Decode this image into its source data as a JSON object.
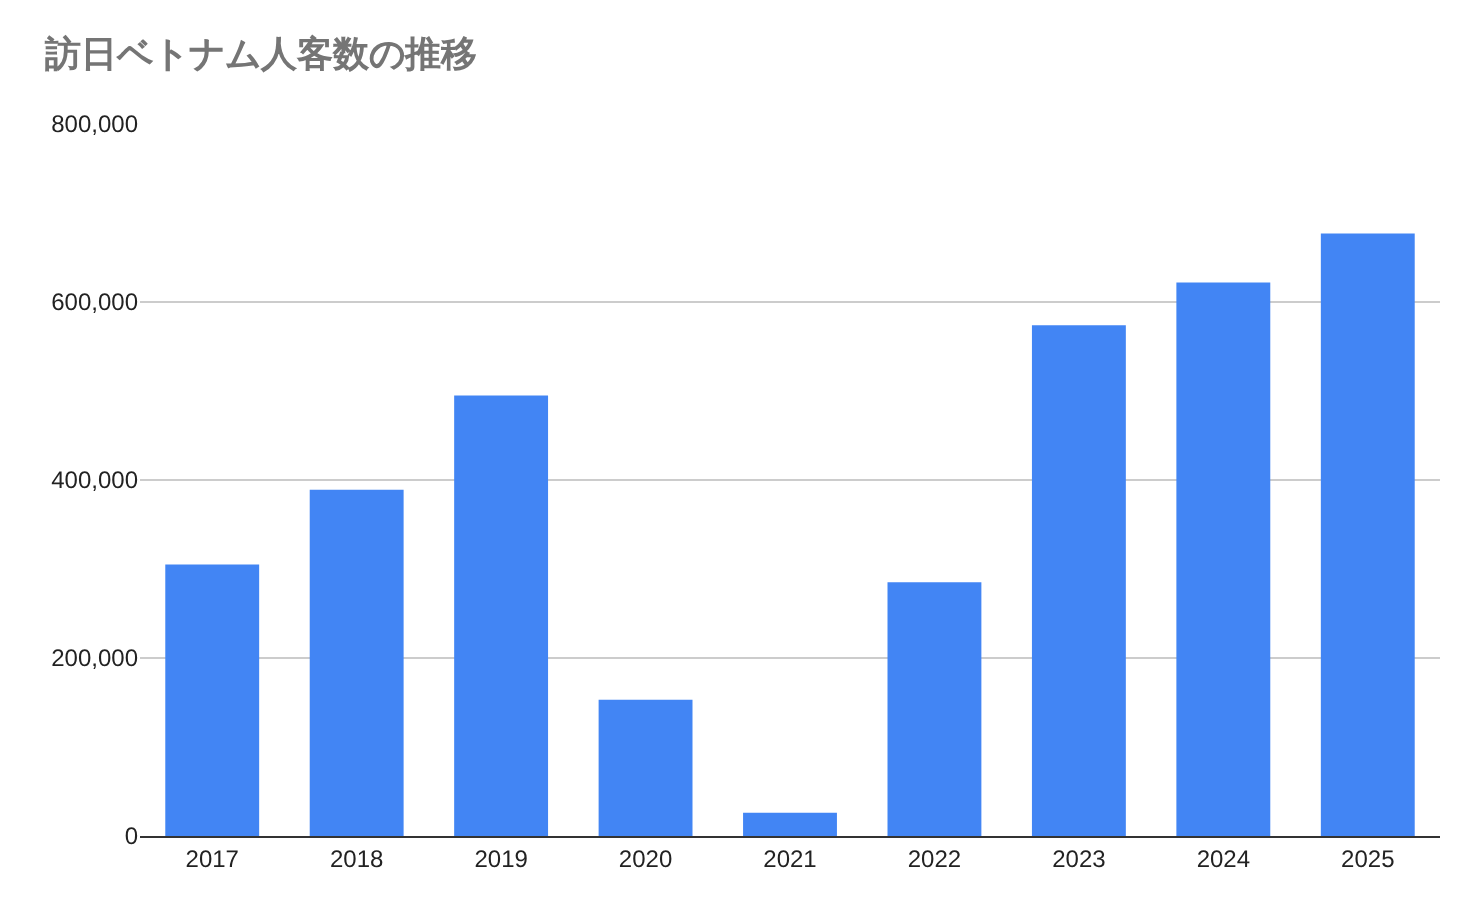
{
  "chart_data": {
    "type": "bar",
    "title": "訪日ベトナム人客数の推移",
    "categories": [
      "2017",
      "2018",
      "2019",
      "2020",
      "2021",
      "2022",
      "2023",
      "2024",
      "2025"
    ],
    "values": [
      305000,
      389000,
      495000,
      153000,
      26000,
      285000,
      574000,
      622000,
      677000
    ],
    "color": "#4285f4",
    "ylim": [
      0,
      800000
    ],
    "yticks": [
      {
        "value": 0,
        "label": "0"
      },
      {
        "value": 200000,
        "label": "200,000"
      },
      {
        "value": 400000,
        "label": "400,000"
      },
      {
        "value": 600000,
        "label": "600,000"
      },
      {
        "value": 800000,
        "label": "800,000"
      }
    ],
    "grid": "y",
    "legend": false
  }
}
